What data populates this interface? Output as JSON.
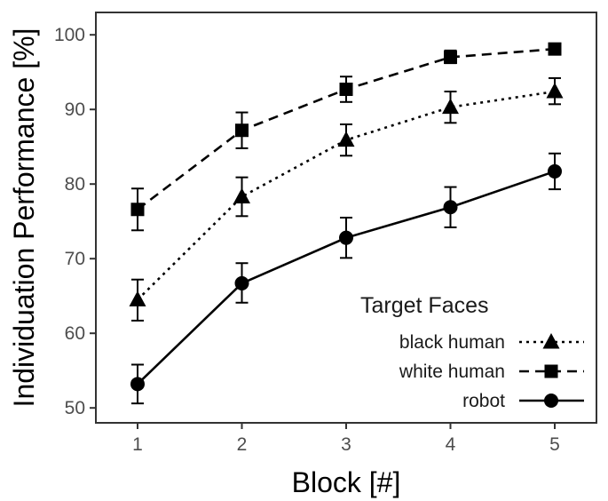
{
  "chart_data": {
    "type": "line",
    "title": "",
    "xlabel": "Block [#]",
    "ylabel": "Individuation Performance [%]",
    "x": [
      1,
      2,
      3,
      4,
      5
    ],
    "xlim": [
      0.6,
      5.4
    ],
    "ylim": [
      48,
      103
    ],
    "xticks": [
      1,
      2,
      3,
      4,
      5
    ],
    "yticks": [
      50,
      60,
      70,
      80,
      90,
      100
    ],
    "grid": false,
    "legend": {
      "title": "Target Faces",
      "position": "bottom-right"
    },
    "series": [
      {
        "name": "black human",
        "marker": "triangle",
        "line": "dotted",
        "values": [
          64.5,
          78.3,
          85.9,
          90.3,
          92.4
        ],
        "err_low": [
          61.7,
          75.7,
          83.8,
          88.2,
          90.7
        ],
        "err_high": [
          67.2,
          80.9,
          88.0,
          92.4,
          94.2
        ]
      },
      {
        "name": "white human",
        "marker": "square",
        "line": "dashed",
        "values": [
          76.6,
          87.2,
          92.7,
          97.0,
          98.1
        ],
        "err_low": [
          73.8,
          84.8,
          91.0,
          96.2,
          97.5
        ],
        "err_high": [
          79.4,
          89.6,
          94.4,
          97.9,
          98.7
        ]
      },
      {
        "name": "robot",
        "marker": "circle",
        "line": "solid",
        "values": [
          53.2,
          66.7,
          72.8,
          76.9,
          81.7
        ],
        "err_low": [
          50.6,
          64.1,
          70.1,
          74.2,
          79.3
        ],
        "err_high": [
          55.8,
          69.4,
          75.5,
          79.6,
          84.1
        ]
      }
    ]
  }
}
